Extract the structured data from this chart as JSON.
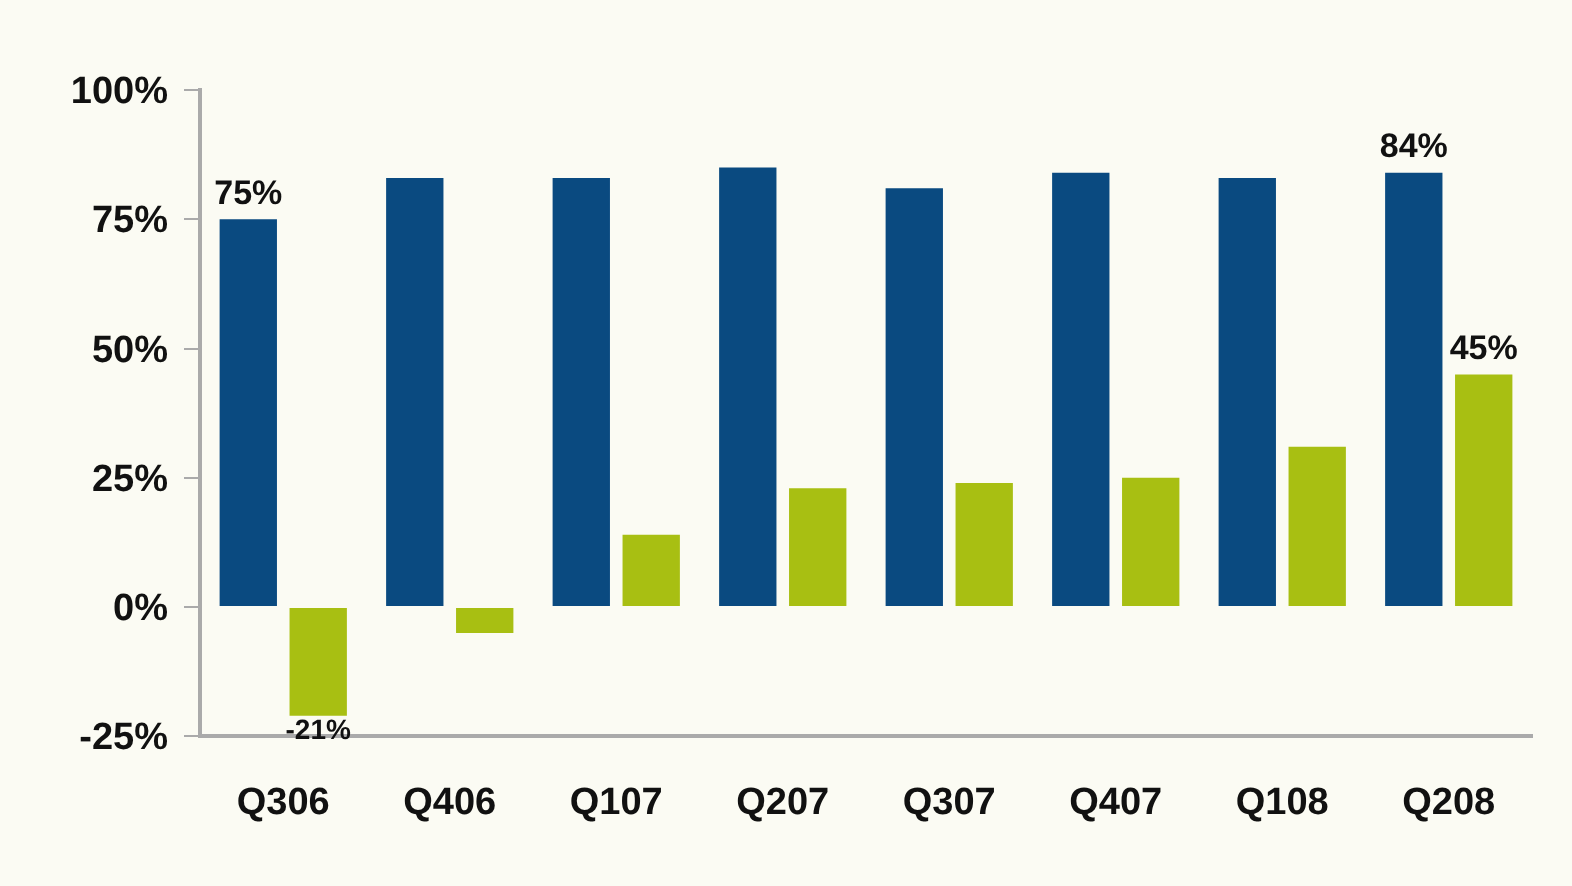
{
  "chart_data": {
    "type": "bar",
    "categories": [
      "Q306",
      "Q406",
      "Q107",
      "Q207",
      "Q307",
      "Q407",
      "Q108",
      "Q208"
    ],
    "series": [
      {
        "color": "#0a4a80",
        "values": [
          75,
          83,
          83,
          85,
          81,
          84,
          83,
          84
        ],
        "value_labels": [
          "75%",
          null,
          null,
          null,
          null,
          null,
          null,
          "84%"
        ]
      },
      {
        "color": "#a8bf12",
        "values": [
          -21,
          -5,
          14,
          23,
          24,
          25,
          31,
          45
        ],
        "value_labels": [
          "-21%",
          null,
          null,
          null,
          null,
          null,
          null,
          "45%"
        ]
      }
    ],
    "ylim": [
      -25,
      100
    ],
    "yticks": [
      {
        "value": -25,
        "label": "-25%"
      },
      {
        "value": 0,
        "label": "0%"
      },
      {
        "value": 25,
        "label": "25%"
      },
      {
        "value": 50,
        "label": "50%"
      },
      {
        "value": 75,
        "label": "75%"
      },
      {
        "value": 100,
        "label": "100%"
      }
    ],
    "grid": false,
    "legend": false
  }
}
